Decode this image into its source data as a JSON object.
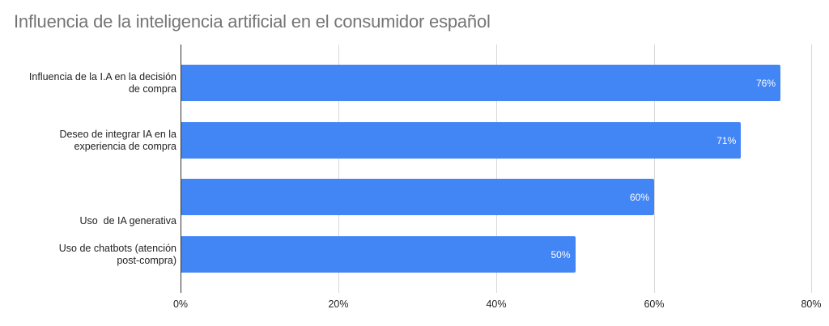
{
  "chart_data": {
    "type": "bar",
    "orientation": "horizontal",
    "title": "Influencia de la inteligencia artificial en el consumidor español",
    "categories": [
      "Influencia de la I.A en la decisión de compra",
      "Deseo de integrar IA en la experiencia de compra",
      "Uso  de IA generativa",
      "Uso de chatbots (atención post-compra)"
    ],
    "values": [
      76,
      71,
      60,
      50
    ],
    "data_labels": [
      "76%",
      "71%",
      "60%",
      "50%"
    ],
    "xlabel": "",
    "ylabel": "",
    "xlim": [
      0,
      80
    ],
    "x_ticks": [
      "0%",
      "20%",
      "40%",
      "60%",
      "80%"
    ],
    "grid": true,
    "legend": "none",
    "bar_color": "#4285f4"
  },
  "labels": {
    "cat0_line1": "Influencia de la I.A en la decisión",
    "cat0_line2": "de compra",
    "cat1_line1": "Deseo de integrar IA en la",
    "cat1_line2": "experiencia de compra",
    "cat2_line1": "Uso  de IA generativa",
    "cat3_line1": "Uso de chatbots (atención",
    "cat3_line2": "post-compra)"
  }
}
